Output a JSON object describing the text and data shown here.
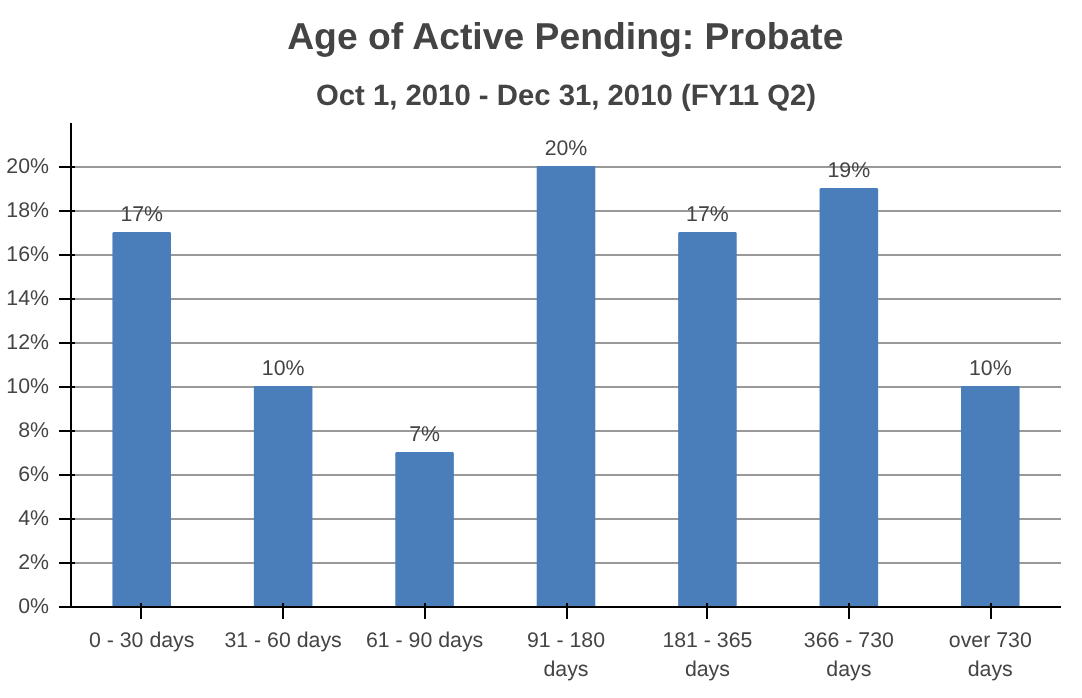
{
  "chart_data": {
    "type": "bar",
    "title": "Age of Active Pending: Probate",
    "subtitle": "Oct 1, 2010 - Dec 31, 2010 (FY11 Q2)",
    "categories": [
      "0 - 30 days",
      "31 - 60 days",
      "61 - 90 days",
      "91 - 180 days",
      "181 - 365 days",
      "366 - 730 days",
      "over 730 days"
    ],
    "values": [
      17,
      10,
      7,
      20,
      17,
      19,
      10
    ],
    "value_labels": [
      "17%",
      "10%",
      "7%",
      "20%",
      "17%",
      "19%",
      "10%"
    ],
    "color": "#4a7ebb",
    "ylim": [
      0,
      22
    ],
    "yticks": [
      {
        "value": 0,
        "label": "0%"
      },
      {
        "value": 2,
        "label": "2%"
      },
      {
        "value": 4,
        "label": "4%"
      },
      {
        "value": 6,
        "label": "6%"
      },
      {
        "value": 8,
        "label": "8%"
      },
      {
        "value": 10,
        "label": "10%"
      },
      {
        "value": 12,
        "label": "12%"
      },
      {
        "value": 14,
        "label": "14%"
      },
      {
        "value": 16,
        "label": "16%"
      },
      {
        "value": 18,
        "label": "18%"
      },
      {
        "value": 20,
        "label": "20%"
      }
    ],
    "grid": "y"
  }
}
